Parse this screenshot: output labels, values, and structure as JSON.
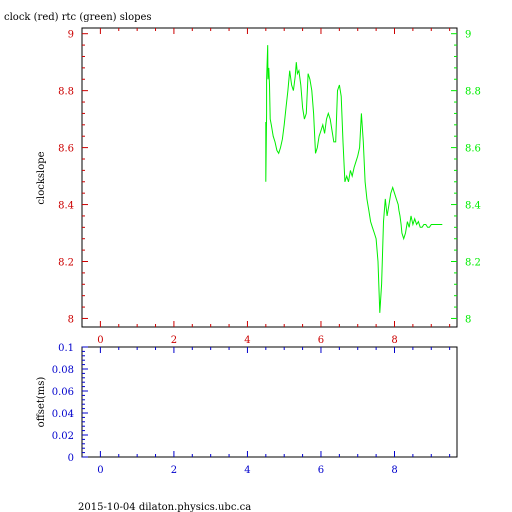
{
  "title": "clock (red) rtc (green) slopes",
  "footer": "2015-10-04 dilaton.physics.ubc.ca",
  "colors": {
    "red": "#cc0000",
    "green": "#00ee00",
    "blue": "#0000cc",
    "frame": "#000000"
  },
  "chart_data": [
    {
      "type": "line",
      "title": "clock (red) rtc (green) slopes",
      "ylabel": "clockslope",
      "xlabel": "",
      "xlim": [
        -0.5,
        9.7
      ],
      "ylim": [
        7.97,
        9.02
      ],
      "x_ticks": [
        "0",
        "2",
        "4",
        "6",
        "8"
      ],
      "x_tick_values": [
        0,
        2,
        4,
        6,
        8
      ],
      "y_ticks_left": [
        "8",
        "8.2",
        "8.4",
        "8.6",
        "8.8",
        "9"
      ],
      "y_ticks_right": [
        "8",
        "8.2",
        "8.4",
        "8.6",
        "8.8",
        "9"
      ],
      "y_tick_values": [
        8,
        8.2,
        8.4,
        8.6,
        8.8,
        9
      ],
      "grid": false,
      "series": [
        {
          "color": "#00ee00",
          "x": [
            4.5,
            4.5,
            4.52,
            4.52,
            4.55,
            4.56,
            4.58,
            4.6,
            4.62,
            4.65,
            4.7,
            4.75,
            4.8,
            4.85,
            4.9,
            4.95,
            5.0,
            5.05,
            5.1,
            5.15,
            5.2,
            5.25,
            5.3,
            5.33,
            5.36,
            5.4,
            5.45,
            5.5,
            5.55,
            5.6,
            5.65,
            5.7,
            5.75,
            5.8,
            5.85,
            5.9,
            5.95,
            6.0,
            6.05,
            6.1,
            6.15,
            6.2,
            6.25,
            6.3,
            6.35,
            6.4,
            6.45,
            6.5,
            6.55,
            6.6,
            6.65,
            6.7,
            6.75,
            6.8,
            6.85,
            6.9,
            6.95,
            7.0,
            7.05,
            7.1,
            7.15,
            7.2,
            7.25,
            7.3,
            7.35,
            7.4,
            7.45,
            7.5,
            7.55,
            7.6,
            7.65,
            7.7,
            7.75,
            7.8,
            7.85,
            7.9,
            7.95,
            8.0,
            8.05,
            8.1,
            8.12,
            8.15,
            8.18,
            8.2,
            8.25,
            8.3,
            8.35,
            8.4,
            8.45,
            8.5,
            8.55,
            8.6,
            8.65,
            8.7,
            8.75,
            8.8,
            8.85,
            8.9,
            8.95,
            9.0,
            9.05,
            9.1,
            9.15,
            9.2,
            9.25,
            9.3
          ],
          "values": [
            8.69,
            8.48,
            8.72,
            8.84,
            8.96,
            8.84,
            8.88,
            8.82,
            8.7,
            8.68,
            8.64,
            8.62,
            8.59,
            8.58,
            8.6,
            8.63,
            8.68,
            8.74,
            8.8,
            8.87,
            8.82,
            8.8,
            8.85,
            8.9,
            8.86,
            8.87,
            8.82,
            8.74,
            8.7,
            8.72,
            8.86,
            8.84,
            8.8,
            8.72,
            8.58,
            8.6,
            8.64,
            8.66,
            8.68,
            8.65,
            8.7,
            8.72,
            8.7,
            8.66,
            8.62,
            8.62,
            8.8,
            8.82,
            8.78,
            8.62,
            8.48,
            8.5,
            8.48,
            8.52,
            8.5,
            8.53,
            8.55,
            8.57,
            8.6,
            8.72,
            8.62,
            8.48,
            8.42,
            8.38,
            8.34,
            8.32,
            8.3,
            8.28,
            8.2,
            8.02,
            8.12,
            8.34,
            8.42,
            8.36,
            8.4,
            8.44,
            8.46,
            8.44,
            8.42,
            8.4,
            8.38,
            8.36,
            8.33,
            8.3,
            8.28,
            8.3,
            8.34,
            8.32,
            8.36,
            8.33,
            8.35,
            8.33,
            8.34,
            8.32,
            8.32,
            8.33,
            8.33,
            8.32,
            8.32,
            8.33,
            8.33,
            8.33,
            8.33,
            8.33,
            8.33,
            8.33
          ]
        }
      ]
    },
    {
      "type": "line",
      "title": "",
      "ylabel": "offset(ms)",
      "xlabel": "",
      "xlim": [
        -0.5,
        9.7
      ],
      "ylim": [
        0,
        0.1
      ],
      "x_ticks": [
        "0",
        "2",
        "4",
        "6",
        "8"
      ],
      "x_tick_values": [
        0,
        2,
        4,
        6,
        8
      ],
      "y_ticks_left": [
        "0",
        "0.02",
        "0.04",
        "0.06",
        "0.08",
        "0.1"
      ],
      "y_tick_values": [
        0,
        0.02,
        0.04,
        0.06,
        0.08,
        0.1
      ],
      "grid": false,
      "series": []
    }
  ]
}
